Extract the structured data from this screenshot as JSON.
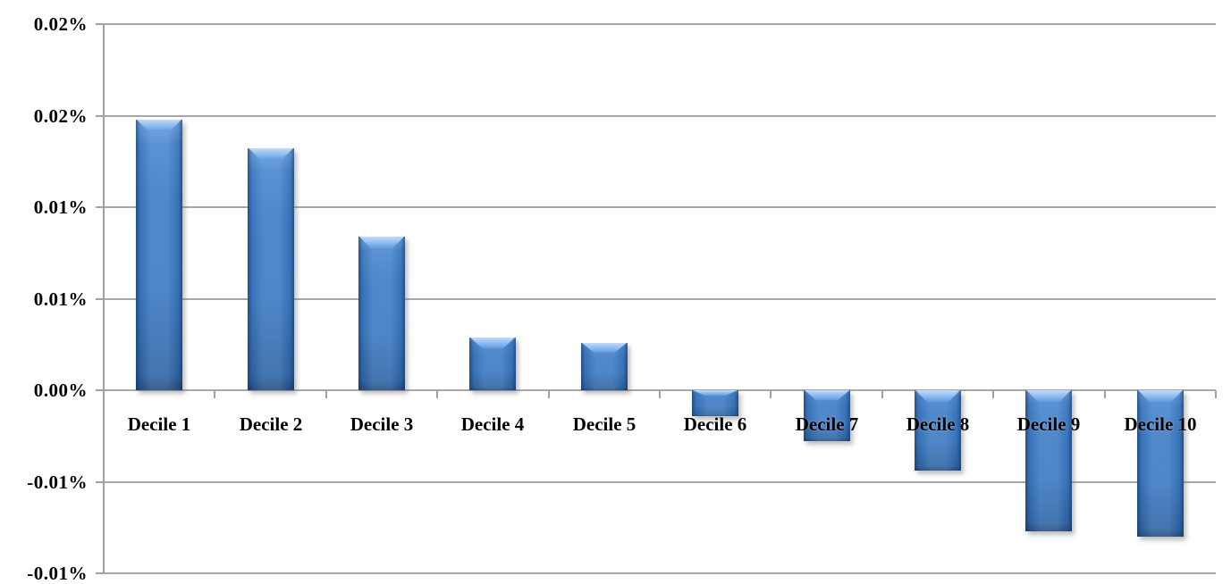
{
  "chart_data": {
    "type": "bar",
    "title": "",
    "xlabel": "",
    "ylabel": "",
    "categories": [
      "Decile 1",
      "Decile 2",
      "Decile 3",
      "Decile 4",
      "Decile 5",
      "Decile 6",
      "Decile 7",
      "Decile 8",
      "Decile 9",
      "Decile 10"
    ],
    "values": [
      0.0148,
      0.0132,
      0.0084,
      0.0029,
      0.0026,
      -0.0014,
      -0.0028,
      -0.0044,
      -0.0077,
      -0.008
    ],
    "value_unit": "%",
    "ylim": [
      -0.01,
      0.02
    ],
    "ytick_interval": 0.005,
    "yticks": [
      {
        "value": 0.02,
        "label": "0.02%"
      },
      {
        "value": 0.015,
        "label": "0.02%"
      },
      {
        "value": 0.01,
        "label": "0.01%"
      },
      {
        "value": 0.005,
        "label": "0.01%"
      },
      {
        "value": 0.0,
        "label": "0.00%"
      },
      {
        "value": -0.005,
        "label": "-0.01%"
      },
      {
        "value": -0.01,
        "label": "-0.01%"
      }
    ],
    "grid": true,
    "legend_position": "none",
    "colors": {
      "bar_fill": "#3B7AC3",
      "bar_highlight": "#A9CDF6",
      "bar_edge_dark": "#264E82",
      "gridline": "#A8A8A8",
      "axis": "#A0A0A0",
      "label_text": "#000000",
      "background": "#FFFFFF"
    }
  }
}
